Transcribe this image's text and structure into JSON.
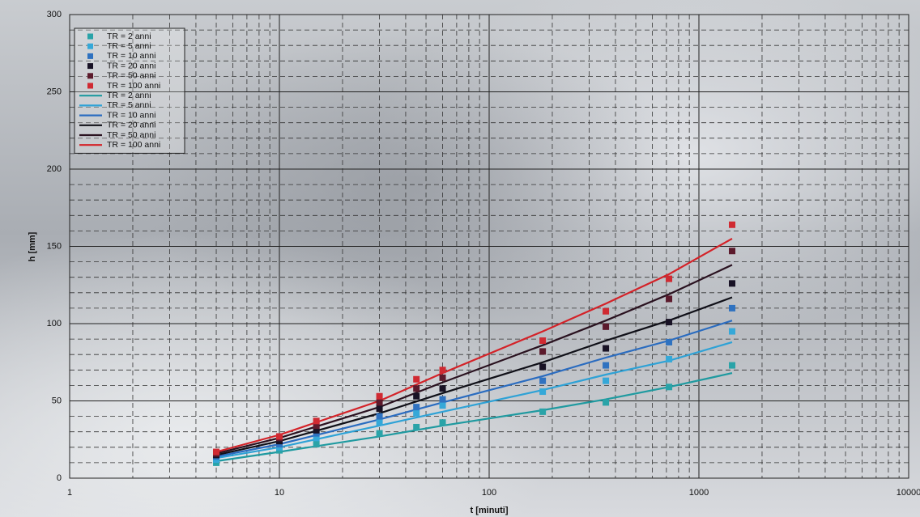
{
  "chart_data": {
    "type": "scatter",
    "x_label": "t [minuti]",
    "y_label": "h [mm]",
    "x_log": true,
    "grid": true,
    "minor_grid": true,
    "legend": "upper left",
    "xlim": [
      1,
      10000
    ],
    "xticks": [
      1,
      10,
      100,
      1000,
      10000
    ],
    "ylim": [
      0,
      300
    ],
    "yticks": [
      0,
      50,
      100,
      150,
      200,
      250,
      300
    ],
    "series": [
      {
        "name": "TR = 2 anni",
        "style": "markers",
        "color": "#2aa3a8",
        "x": [
          5,
          10,
          15,
          30,
          45,
          60,
          180,
          360,
          720,
          1440
        ],
        "values": [
          10,
          18,
          22,
          29,
          33,
          36,
          43,
          49,
          59,
          73
        ]
      },
      {
        "name": "TR = 5 anni",
        "style": "markers",
        "color": "#35a8d8",
        "x": [
          5,
          10,
          15,
          30,
          45,
          60,
          180,
          360,
          720,
          1440
        ],
        "values": [
          12,
          20,
          26,
          36,
          42,
          47,
          56,
          63,
          77,
          95
        ]
      },
      {
        "name": "TR = 10 anni",
        "style": "markers",
        "color": "#2f72c0",
        "x": [
          5,
          10,
          15,
          30,
          45,
          60,
          180,
          360,
          720,
          1440
        ],
        "values": [
          14,
          22,
          29,
          40,
          46,
          51,
          63,
          73,
          88,
          110
        ]
      },
      {
        "name": "TR = 20 anni",
        "style": "markers",
        "color": "#181225",
        "x": [
          5,
          10,
          15,
          30,
          45,
          60,
          180,
          360,
          720,
          1440
        ],
        "values": [
          15,
          24,
          31,
          45,
          53,
          58,
          72,
          84,
          101,
          126
        ]
      },
      {
        "name": "TR = 50 anni",
        "style": "markers",
        "color": "#5c1a2c",
        "x": [
          5,
          10,
          15,
          30,
          45,
          60,
          180,
          360,
          720,
          1440
        ],
        "values": [
          16,
          26,
          34,
          49,
          58,
          65,
          82,
          98,
          116,
          147
        ]
      },
      {
        "name": "TR = 100 anni",
        "style": "markers",
        "color": "#d02a32",
        "x": [
          5,
          10,
          15,
          30,
          45,
          60,
          180,
          360,
          720,
          1440
        ],
        "values": [
          17,
          27,
          37,
          53,
          64,
          70,
          89,
          108,
          129,
          164
        ]
      },
      {
        "name": "TR = 2 anni",
        "style": "line",
        "color": "#1f9aa0",
        "x": [
          5,
          10,
          30,
          60,
          180,
          360,
          720,
          1440
        ],
        "values": [
          11,
          17,
          27,
          34,
          44,
          51,
          59,
          68
        ]
      },
      {
        "name": "TR = 5 anni",
        "style": "line",
        "color": "#2ea2d6",
        "x": [
          5,
          10,
          30,
          60,
          180,
          360,
          720,
          1440
        ],
        "values": [
          13,
          20,
          34,
          43,
          57,
          67,
          76,
          88
        ]
      },
      {
        "name": "TR = 10 anni",
        "style": "line",
        "color": "#2a6cc0",
        "x": [
          5,
          10,
          30,
          60,
          180,
          360,
          720,
          1440
        ],
        "values": [
          14,
          22,
          38,
          49,
          66,
          78,
          89,
          102
        ]
      },
      {
        "name": "TR = 20 anni",
        "style": "line",
        "color": "#101018",
        "x": [
          5,
          10,
          30,
          60,
          180,
          360,
          720,
          1440
        ],
        "values": [
          15,
          24,
          42,
          55,
          75,
          89,
          102,
          117
        ]
      },
      {
        "name": "TR = 50 anni",
        "style": "line",
        "color": "#2a1220",
        "x": [
          5,
          10,
          30,
          60,
          180,
          360,
          720,
          1440
        ],
        "values": [
          16,
          26,
          46,
          62,
          86,
          102,
          119,
          138
        ]
      },
      {
        "name": "TR = 100 anni",
        "style": "line",
        "color": "#d42228",
        "x": [
          5,
          10,
          30,
          60,
          180,
          360,
          720,
          1440
        ],
        "values": [
          17,
          28,
          50,
          68,
          95,
          113,
          132,
          155
        ]
      }
    ]
  }
}
